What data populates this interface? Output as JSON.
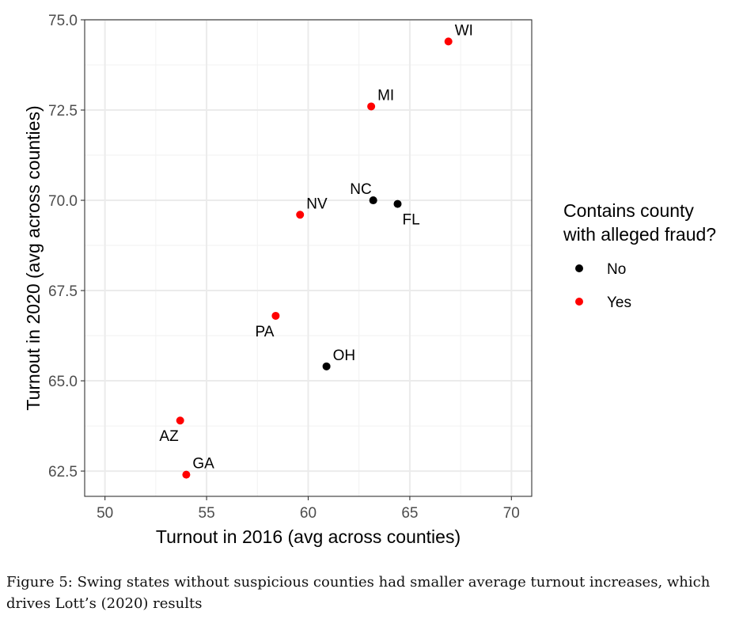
{
  "chart_data": {
    "type": "scatter",
    "xlabel": "Turnout in 2016 (avg across counties)",
    "ylabel": "Turnout in 2020 (avg across counties)",
    "xlim": [
      49,
      71
    ],
    "ylim": [
      61.8,
      75.0
    ],
    "x_ticks": [
      50,
      55,
      60,
      65,
      70
    ],
    "x_tick_labels": [
      "50",
      "55",
      "60",
      "65",
      "70"
    ],
    "y_ticks": [
      62.5,
      65.0,
      67.5,
      70.0,
      72.5,
      75.0
    ],
    "y_tick_labels": [
      "62.5",
      "65.0",
      "67.5",
      "70.0",
      "72.5",
      "75.0"
    ],
    "grid": true,
    "legend": {
      "title_lines": [
        "Contains county",
        "with alleged fraud?"
      ],
      "position": "right",
      "items": [
        {
          "label": "No",
          "color": "#000000"
        },
        {
          "label": "Yes",
          "color": "#ff0000"
        }
      ]
    },
    "points": [
      {
        "label": "WI",
        "x": 66.9,
        "y": 74.4,
        "group": "Yes",
        "label_pos": "above-right"
      },
      {
        "label": "MI",
        "x": 63.1,
        "y": 72.6,
        "group": "Yes",
        "label_pos": "above-right"
      },
      {
        "label": "NC",
        "x": 63.2,
        "y": 70.0,
        "group": "No",
        "label_pos": "above-left"
      },
      {
        "label": "FL",
        "x": 64.4,
        "y": 69.9,
        "group": "No",
        "label_pos": "below-right"
      },
      {
        "label": "NV",
        "x": 59.6,
        "y": 69.6,
        "group": "Yes",
        "label_pos": "above-right"
      },
      {
        "label": "PA",
        "x": 58.4,
        "y": 66.8,
        "group": "Yes",
        "label_pos": "below-left"
      },
      {
        "label": "OH",
        "x": 60.9,
        "y": 65.4,
        "group": "No",
        "label_pos": "above-right"
      },
      {
        "label": "AZ",
        "x": 53.7,
        "y": 63.9,
        "group": "Yes",
        "label_pos": "below-left"
      },
      {
        "label": "GA",
        "x": 54.0,
        "y": 62.4,
        "group": "Yes",
        "label_pos": "above-right"
      }
    ]
  },
  "caption": "Figure 5: Swing states without suspicious counties had smaller average turnout increases, which drives Lott’s (2020) results"
}
